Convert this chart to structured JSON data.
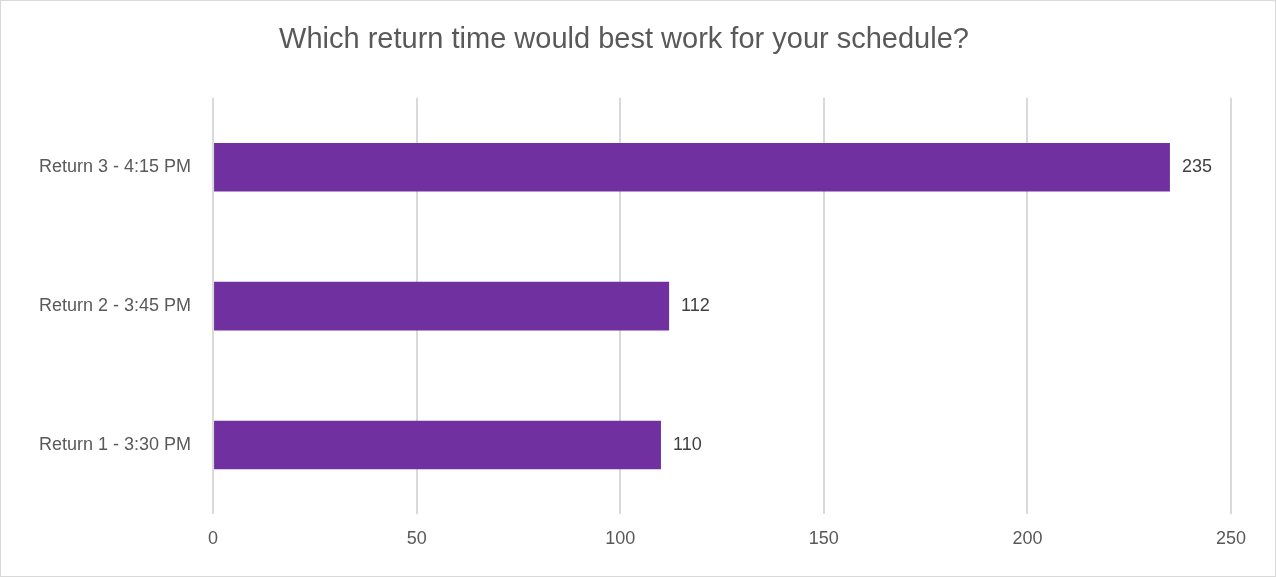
{
  "chart_data": {
    "type": "bar",
    "orientation": "horizontal",
    "title": "Which return time would best work for your schedule?",
    "categories": [
      "Return 3 - 4:15 PM",
      "Return 2 - 3:45 PM",
      "Return 1 - 3:30 PM"
    ],
    "values": [
      235,
      112,
      110
    ],
    "color": "#7030a0",
    "xlim": [
      0,
      250
    ],
    "xticks": [
      0,
      50,
      100,
      150,
      200,
      250
    ],
    "grid": "x",
    "data_labels": true,
    "legend": false
  }
}
